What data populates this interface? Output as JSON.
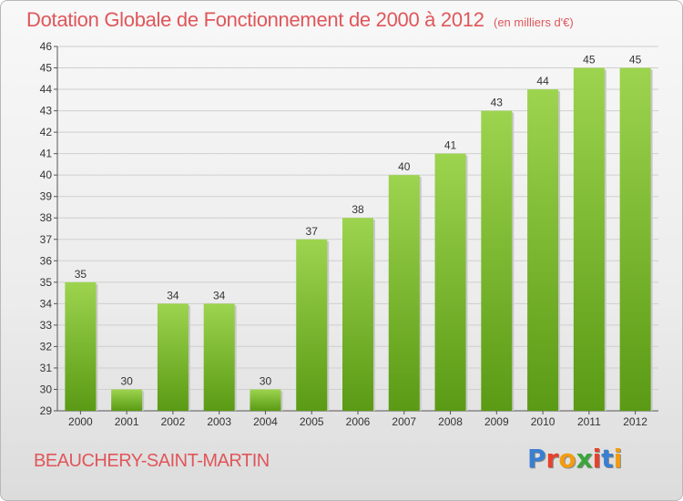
{
  "header": {
    "title": "Dotation Globale de Fonctionnement de 2000 à 2012",
    "subtitle": "(en milliers d'€)"
  },
  "footer": {
    "city": "BEAUCHERY-SAINT-MARTIN",
    "logo": "Proxiti"
  },
  "colors": {
    "title": "#e0565a",
    "bar_top": "#9dd44f",
    "bar_bottom": "#5a9a14",
    "grid": "#cfcfcf"
  },
  "chart_data": {
    "type": "bar",
    "categories": [
      "2000",
      "2001",
      "2002",
      "2003",
      "2004",
      "2005",
      "2006",
      "2007",
      "2008",
      "2009",
      "2010",
      "2011",
      "2012"
    ],
    "values": [
      35,
      30,
      34,
      34,
      30,
      37,
      38,
      40,
      41,
      43,
      44,
      45,
      45
    ],
    "data_labels": [
      "35",
      "30",
      "34",
      "34",
      "30",
      "37",
      "38",
      "40",
      "41",
      "43",
      "44",
      "45",
      "45"
    ],
    "title": "Dotation Globale de Fonctionnement de 2000 à 2012",
    "xlabel": "",
    "ylabel": "",
    "ylim": [
      29,
      46
    ],
    "yticks": [
      29,
      30,
      31,
      32,
      33,
      34,
      35,
      36,
      37,
      38,
      39,
      40,
      41,
      42,
      43,
      44,
      45,
      46
    ],
    "grid": true,
    "legend": "none"
  }
}
